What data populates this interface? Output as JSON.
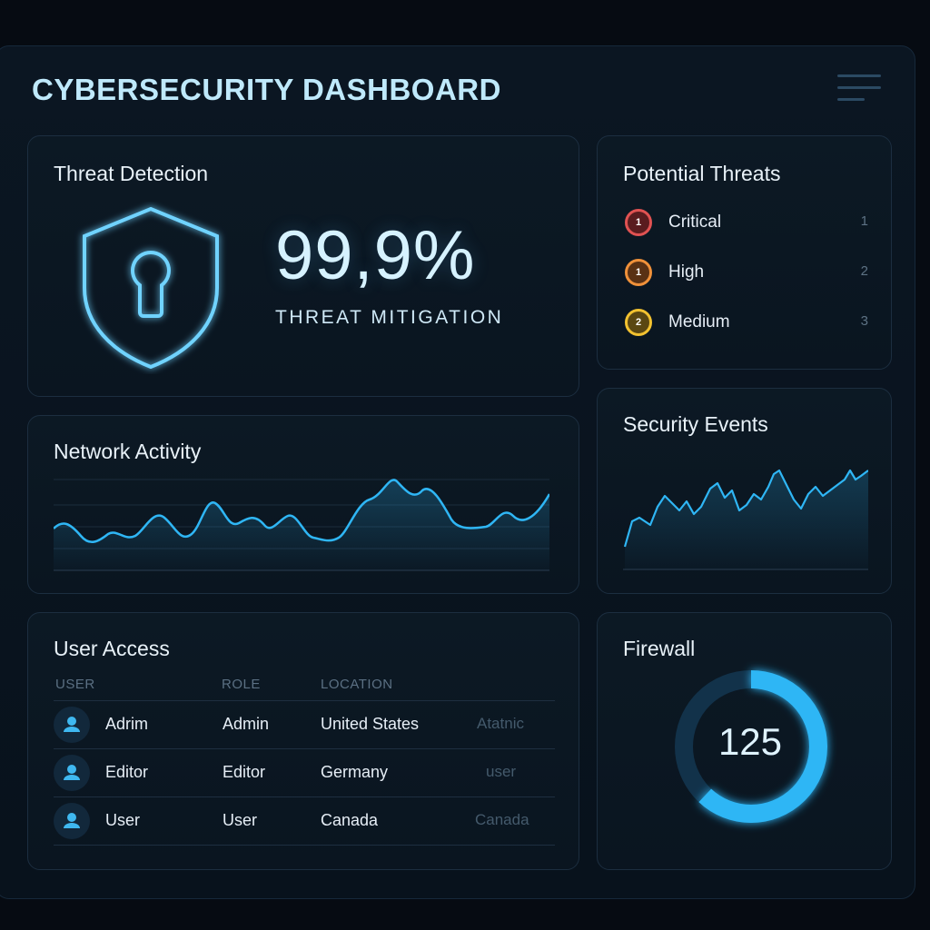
{
  "header": {
    "title": "CYBERSECURITY DASHBOARD"
  },
  "threat_detection": {
    "title": "Threat Detection",
    "value": "99,9%",
    "subtitle": "THREAT MITIGATION"
  },
  "potential_threats": {
    "title": "Potential Threats",
    "items": [
      {
        "badge": "1",
        "label": "Critical",
        "count": "1",
        "color": "#e05252"
      },
      {
        "badge": "1",
        "label": "High",
        "count": "2",
        "color": "#f0913a"
      },
      {
        "badge": "2",
        "label": "Medium",
        "count": "3",
        "color": "#f2c230"
      }
    ]
  },
  "network_activity": {
    "title": "Network Activity"
  },
  "security_events": {
    "title": "Security Events"
  },
  "user_access": {
    "title": "User Access",
    "columns": [
      "USER",
      "ROLE",
      "LOCATION"
    ],
    "rows": [
      {
        "user": "Adrim",
        "role": "Admin",
        "location": "United States",
        "extra": "Atatnic"
      },
      {
        "user": "Editor",
        "role": "Editor",
        "location": "Germany",
        "extra": "user"
      },
      {
        "user": "User",
        "role": "User",
        "location": "Canada",
        "extra": "Canada"
      }
    ]
  },
  "firewall": {
    "title": "Firewall",
    "value": "125",
    "fill": 0.62
  },
  "colors": {
    "accent": "#2fb6f5",
    "background": "#060b12",
    "card": "#0b1721"
  }
}
